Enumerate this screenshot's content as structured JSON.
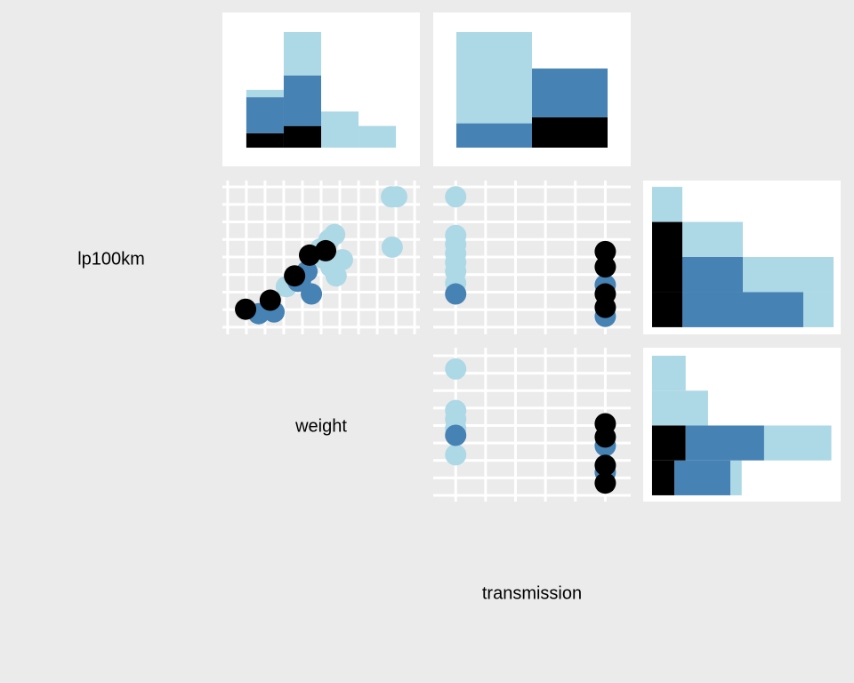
{
  "variables": [
    "lp100km",
    "weight",
    "transmission"
  ],
  "chart_data": [
    {
      "type": "histogram",
      "orientation": "vertical",
      "bins": [
        1.5,
        2.5,
        3.5,
        4.5,
        5.5
      ],
      "series": [
        {
          "color": "#000000",
          "values": [
            2,
            3,
            0,
            0
          ]
        },
        {
          "color": "#4682b4",
          "values": [
            5,
            7,
            0,
            0
          ]
        },
        {
          "color": "#add8e6",
          "values": [
            1,
            6,
            5,
            3
          ]
        }
      ],
      "xlim": [
        0.86,
        6.14
      ],
      "ylim": [
        -2.58,
        18.71
      ],
      "grid": false
    },
    {
      "type": "bar",
      "categories": [
        null,
        null
      ],
      "series": [
        {
          "color": "#000000",
          "values": [
            0,
            5
          ]
        },
        {
          "color": "#4682b4",
          "values": [
            4,
            8
          ]
        },
        {
          "color": "#add8e6",
          "values": [
            15,
            0
          ]
        }
      ],
      "ylim": [
        -3.07,
        22.22
      ],
      "grid": false
    },
    {
      "type": "scatter",
      "series": [
        {
          "color": "#add8e6",
          "x": [
            5.38,
            5.52,
            5.4,
            3.86,
            3.71,
            4.07,
            3.9,
            3.76,
            3.48,
            3.55,
            2.57
          ],
          "y": [
            21.87,
            21.87,
            16.13,
            17.56,
            16.95,
            14.69,
            12.85,
            13.87,
            15.92,
            14.9,
            11.62
          ]
        },
        {
          "color": "#4682b4",
          "x": [
            1.83,
            2.24,
            2.88,
            3.24,
            2.95,
            3.12
          ],
          "y": [
            8.54,
            8.74,
            12.23,
            10.79,
            12.33,
            13.36
          ]
        },
        {
          "color": "#000000",
          "x": [
            1.48,
            2.14,
            2.79,
            3.19,
            3.62
          ],
          "y": [
            9.05,
            10.08,
            12.85,
            15.21,
            15.72
          ]
        }
      ],
      "xlim": [
        0.86,
        6.14
      ],
      "ylim": [
        6.18,
        23.72
      ],
      "xticks": [
        1,
        1.5,
        2,
        2.5,
        3,
        3.5,
        4,
        4.5,
        5,
        5.5,
        6
      ],
      "yticks": [
        7,
        9,
        11,
        13,
        15,
        17,
        19,
        21,
        23
      ],
      "grid": true
    },
    {
      "type": "scatter",
      "series": [
        {
          "color": "#add8e6",
          "x": [
            0,
            0,
            0,
            0,
            0,
            0,
            0
          ],
          "y": [
            21.87,
            17.46,
            16.44,
            15.41,
            14.38,
            13.36,
            12.03
          ]
        },
        {
          "color": "#4682b4",
          "x": [
            0,
            1,
            1
          ],
          "y": [
            10.79,
            11.82,
            8.23
          ]
        },
        {
          "color": "#000000",
          "x": [
            1,
            1,
            1,
            1
          ],
          "y": [
            15.62,
            13.87,
            10.79,
            9.26
          ]
        }
      ],
      "xlim": [
        -0.15,
        1.17
      ],
      "ylim": [
        6.18,
        23.72
      ],
      "xticks": [
        0,
        0.2,
        0.4,
        0.6,
        0.8,
        1
      ],
      "yticks": [
        7,
        9,
        11,
        13,
        15,
        17,
        19,
        21,
        23
      ],
      "grid": true
    },
    {
      "type": "histogram",
      "orientation": "horizontal",
      "bins": [
        7,
        11,
        15,
        19,
        23
      ],
      "series": [
        {
          "color": "#000000",
          "values": [
            2,
            2,
            2,
            0
          ]
        },
        {
          "color": "#4682b4",
          "values": [
            8,
            4,
            0,
            0
          ]
        },
        {
          "color": "#add8e6",
          "values": [
            2,
            6,
            4,
            2
          ]
        }
      ],
      "xlim": [
        -0.59,
        12.47
      ],
      "ylim": [
        6.18,
        23.72
      ],
      "grid": false
    },
    {
      "type": "scatter",
      "series": [
        {
          "color": "#add8e6",
          "x": [
            0,
            0,
            0,
            0,
            0
          ],
          "y": [
            5.12,
            3.93,
            3.68,
            3.42,
            2.66
          ]
        },
        {
          "color": "#4682b4",
          "x": [
            0,
            1,
            1
          ],
          "y": [
            3.22,
            2.92,
            2.16
          ]
        },
        {
          "color": "#000000",
          "x": [
            1,
            1,
            1,
            1
          ],
          "y": [
            3.55,
            3.17,
            2.36,
            1.85
          ]
        }
      ],
      "xlim": [
        -0.15,
        1.17
      ],
      "ylim": [
        1.32,
        5.73
      ],
      "xticks": [
        0,
        0.2,
        0.4,
        0.6,
        0.8,
        1
      ],
      "yticks": [
        1.5,
        2,
        2.5,
        3,
        3.5,
        4,
        4.5,
        5,
        5.5
      ],
      "grid": true
    },
    {
      "type": "histogram",
      "orientation": "horizontal",
      "bins": [
        1.5,
        2.5,
        3.5,
        4.5,
        5.5
      ],
      "series": [
        {
          "color": "#000000",
          "values": [
            2,
            3,
            0,
            0
          ]
        },
        {
          "color": "#4682b4",
          "values": [
            5,
            7,
            0,
            0
          ]
        },
        {
          "color": "#add8e6",
          "values": [
            1,
            6,
            5,
            3
          ]
        }
      ],
      "xlim": [
        -0.79,
        16.83
      ],
      "ylim": [
        1.32,
        5.73
      ],
      "grid": false
    }
  ]
}
